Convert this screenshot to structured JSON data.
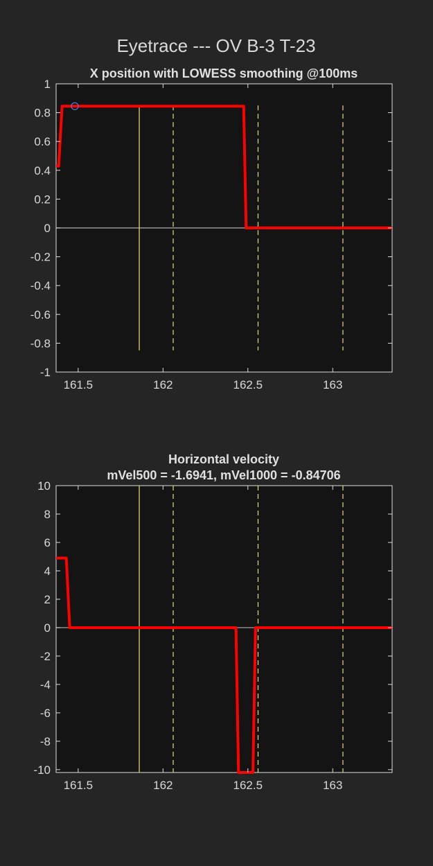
{
  "figure": {
    "title": "Eyetrace --- OV B-3 T-23",
    "background": "#252525",
    "axes_background": "#141414"
  },
  "chart_data": [
    {
      "type": "line",
      "title": "X position with LOWESS smoothing @100ms",
      "xlim": [
        161.37,
        163.35
      ],
      "ylim": [
        -1,
        1
      ],
      "xticks": [
        161.5,
        162,
        162.5,
        163
      ],
      "xtick_labels": [
        "161.5",
        "162",
        "162.5",
        "163"
      ],
      "yticks": [
        1,
        0.8,
        0.6,
        0.4,
        0.2,
        0,
        -0.2,
        -0.4,
        -0.6,
        -0.8,
        -1
      ],
      "ytick_labels": [
        "1",
        "0.8",
        "0.6",
        "0.4",
        "0.2",
        "0",
        "-0.2",
        "-0.4",
        "-0.6",
        "-0.8",
        "-1"
      ],
      "grid": false,
      "series": [
        {
          "color": "#ff0000",
          "x": [
            161.37,
            161.385,
            161.405,
            162.475,
            162.49,
            163.35
          ],
          "y": [
            0.43,
            0.43,
            0.845,
            0.845,
            0.0,
            0.0
          ]
        }
      ],
      "zero_line": {
        "y": 0,
        "color": "#b0b0b0"
      },
      "markers": [
        {
          "type": "circle",
          "x": 161.48,
          "y": 0.845,
          "color": "#4a7fd0"
        }
      ],
      "vlines": [
        {
          "x": 161.86,
          "style": "solid",
          "color": "#d9d07a",
          "y_range": [
            -0.85,
            0.85
          ]
        },
        {
          "x": 162.06,
          "style": "dashed",
          "color": "#d9d07a",
          "y_range": [
            -0.85,
            0.85
          ]
        },
        {
          "x": 162.56,
          "style": "dashed",
          "color": "#d9d07a",
          "y_range": [
            -0.85,
            0.85
          ]
        },
        {
          "x": 163.06,
          "style": "dashed",
          "color": "#d9d07a",
          "y_range": [
            -0.85,
            0.85
          ]
        }
      ]
    },
    {
      "type": "line",
      "title": "Horizontal velocity",
      "subtitle": "mVel500 = -1.6941, mVel1000 = -0.84706",
      "xlim": [
        161.37,
        163.35
      ],
      "ylim": [
        -10.2,
        10
      ],
      "xticks": [
        161.5,
        162,
        162.5,
        163
      ],
      "xtick_labels": [
        "161.5",
        "162",
        "162.5",
        "163"
      ],
      "yticks": [
        10,
        8,
        6,
        4,
        2,
        0,
        -2,
        -4,
        -6,
        -8,
        -10
      ],
      "ytick_labels": [
        "10",
        "8",
        "6",
        "4",
        "2",
        "0",
        "-2",
        "-4",
        "-6",
        "-8",
        "-10"
      ],
      "grid": false,
      "series": [
        {
          "color": "#ff0000",
          "x": [
            161.37,
            161.43,
            161.45,
            162.43,
            162.445,
            162.53,
            162.545,
            163.35
          ],
          "y": [
            4.9,
            4.9,
            0.0,
            0.0,
            -10.2,
            -10.2,
            0.0,
            0.0
          ]
        }
      ],
      "zero_line": {
        "y": 0,
        "color": "#b0b0b0"
      },
      "markers": [],
      "vlines": [
        {
          "x": 161.86,
          "style": "solid",
          "color": "#d9d07a",
          "y_range": [
            -10.2,
            10
          ]
        },
        {
          "x": 162.06,
          "style": "dashed",
          "color": "#d9d07a",
          "y_range": [
            -10.2,
            10
          ]
        },
        {
          "x": 162.56,
          "style": "dashed",
          "color": "#d9d07a",
          "y_range": [
            -10.2,
            10
          ]
        },
        {
          "x": 163.06,
          "style": "dashed",
          "color": "#d9d07a",
          "y_range": [
            -10.2,
            10
          ]
        }
      ]
    }
  ]
}
